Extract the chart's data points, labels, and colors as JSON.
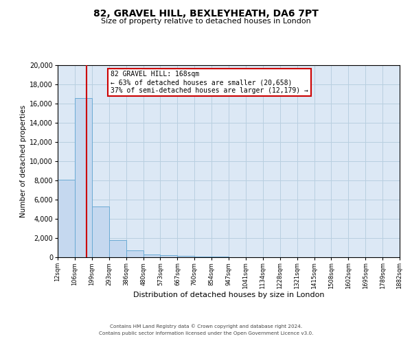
{
  "title": "82, GRAVEL HILL, BEXLEYHEATH, DA6 7PT",
  "subtitle": "Size of property relative to detached houses in London",
  "xlabel": "Distribution of detached houses by size in London",
  "ylabel": "Number of detached properties",
  "bar_color": "#c5d8ef",
  "bar_edge_color": "#6aaad4",
  "background_color": "#dce8f5",
  "grid_color": "#b8cfe0",
  "bin_edges": [
    12,
    106,
    199,
    293,
    386,
    480,
    573,
    667,
    760,
    854,
    947,
    1041,
    1134,
    1228,
    1321,
    1415,
    1508,
    1602,
    1695,
    1789,
    1882
  ],
  "bar_heights": [
    8050,
    16550,
    5300,
    1800,
    700,
    310,
    200,
    150,
    100,
    60,
    30,
    20,
    10,
    10,
    5,
    5,
    3,
    2,
    1,
    1
  ],
  "property_size": 168,
  "red_line_color": "#cc0000",
  "annotation_line1": "82 GRAVEL HILL: 168sqm",
  "annotation_line2": "← 63% of detached houses are smaller (20,658)",
  "annotation_line3": "37% of semi-detached houses are larger (12,179) →",
  "annotation_box_color": "#ffffff",
  "annotation_border_color": "#cc0000",
  "ylim_max": 20000,
  "yticks": [
    0,
    2000,
    4000,
    6000,
    8000,
    10000,
    12000,
    14000,
    16000,
    18000,
    20000
  ],
  "xtick_labels": [
    "12sqm",
    "106sqm",
    "199sqm",
    "293sqm",
    "386sqm",
    "480sqm",
    "573sqm",
    "667sqm",
    "760sqm",
    "854sqm",
    "947sqm",
    "1041sqm",
    "1134sqm",
    "1228sqm",
    "1321sqm",
    "1415sqm",
    "1508sqm",
    "1602sqm",
    "1695sqm",
    "1789sqm",
    "1882sqm"
  ],
  "footer_line1": "Contains HM Land Registry data © Crown copyright and database right 2024.",
  "footer_line2": "Contains public sector information licensed under the Open Government Licence v3.0."
}
